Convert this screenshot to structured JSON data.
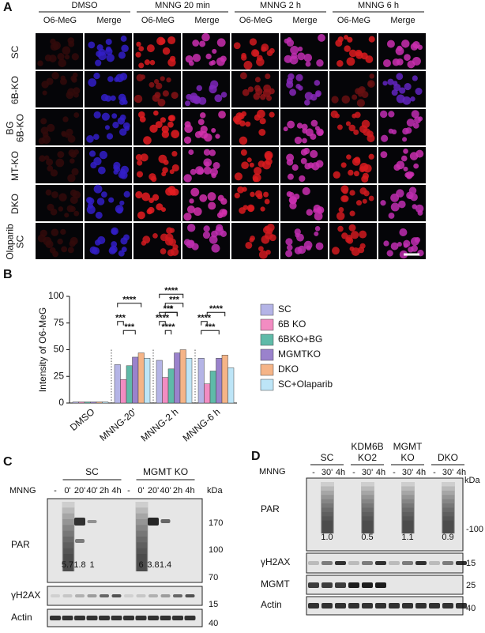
{
  "panel_a": {
    "label": "A",
    "column_groups": [
      "DMSO",
      "MNNG 20 min",
      "MNNG 2 h",
      "MNNG 6 h"
    ],
    "column_labels": [
      "O6-MeG",
      "Merge",
      "O6-MeG",
      "Merge",
      "O6-MeG",
      "Merge",
      "O6-MeG",
      "Merge"
    ],
    "row_labels": [
      [
        "SC"
      ],
      [
        "6B-KO"
      ],
      [
        "BG",
        "6B-KO"
      ],
      [
        "MT-KO"
      ],
      [
        "DKO"
      ],
      [
        "Olaparib",
        "SC"
      ]
    ]
  },
  "chart_data": {
    "type": "bar",
    "panel_label": "B",
    "ylabel": "Intensity of O6-MeG",
    "categories": [
      "DMSO",
      "MNNG-20'",
      "MNNG-2 h",
      "MNNG-6 h"
    ],
    "series": [
      {
        "name": "SC",
        "color": "#b4b4e6",
        "values": [
          1,
          36,
          40,
          42
        ]
      },
      {
        "name": "6B KO",
        "color": "#f28cc2",
        "values": [
          1,
          22,
          24,
          18
        ]
      },
      {
        "name": "6BKO+BG",
        "color": "#5fbaa8",
        "values": [
          1,
          35,
          32,
          30
        ]
      },
      {
        "name": "MGMTKO",
        "color": "#9a82cc",
        "values": [
          1,
          43,
          47,
          42
        ]
      },
      {
        "name": "DKO",
        "color": "#f5b487",
        "values": [
          1,
          47,
          50,
          45
        ]
      },
      {
        "name": "SC+Olaparib",
        "color": "#bde5f7",
        "values": [
          1,
          42,
          42,
          33
        ]
      }
    ],
    "ylim": [
      0,
      100
    ],
    "yticks": [
      0,
      25,
      50,
      75,
      100
    ],
    "annotations": [
      "****",
      "***",
      "***",
      "***",
      "****",
      "***",
      "****",
      "****",
      "*",
      "****",
      "****",
      "***"
    ]
  },
  "panel_c": {
    "label": "C",
    "treatment": "MNNG",
    "groups": [
      "SC",
      "MGMT KO"
    ],
    "lanes": [
      "-",
      "0'",
      "20'",
      "40'",
      "2h",
      "4h",
      "-",
      "0'",
      "20'",
      "40'",
      "2h",
      "4h"
    ],
    "kda": "kDa",
    "markers": [
      "170",
      "100",
      "70",
      "15",
      "40"
    ],
    "blots": [
      "PAR",
      "γH2AX",
      "Actin"
    ],
    "quantification": [
      "5.7",
      "1.8",
      "1",
      "6",
      "3.8",
      "1.4"
    ]
  },
  "panel_d": {
    "label": "D",
    "treatment": "MNNG",
    "groups": [
      [
        "SC"
      ],
      [
        "KDM6B",
        "KO2"
      ],
      [
        "MGMT",
        "KO"
      ],
      [
        "DKO"
      ]
    ],
    "lanes": [
      "-",
      "30'",
      "4h",
      "-",
      "30'",
      "4h",
      "-",
      "30'",
      "4h",
      "-",
      "30'",
      "4h"
    ],
    "kda": "kDa",
    "markers": [
      "-100",
      "15",
      "25",
      "40"
    ],
    "blots": [
      "PAR",
      "γH2AX",
      "MGMT",
      "Actin"
    ],
    "quantification": [
      "1.0",
      "0.5",
      "1.1",
      "0.9"
    ]
  }
}
